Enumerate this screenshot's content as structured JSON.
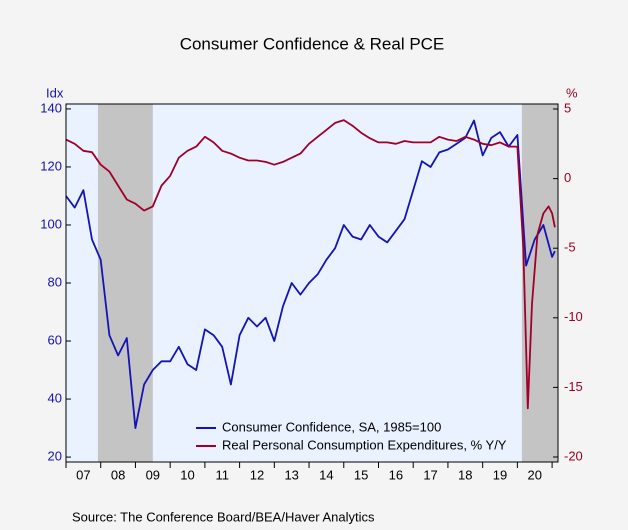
{
  "chart_data": {
    "type": "line",
    "title": "Consumer Confidence & Real PCE",
    "y_axis_label": "Idx",
    "y2_axis_label": "%",
    "source": "Source: The Conference Board/BEA/Haver Analytics",
    "xlim": [
      2007,
      2021.17
    ],
    "xticks": [
      2007,
      2008,
      2009,
      2010,
      2011,
      2012,
      2013,
      2014,
      2015,
      2016,
      2017,
      2018,
      2019,
      2020,
      2021
    ],
    "x_labels": [
      {
        "value": 2007.5,
        "label": "07"
      },
      {
        "value": 2008.5,
        "label": "08"
      },
      {
        "value": 2009.5,
        "label": "09"
      },
      {
        "value": 2010.5,
        "label": "10"
      },
      {
        "value": 2011.5,
        "label": "11"
      },
      {
        "value": 2012.5,
        "label": "12"
      },
      {
        "value": 2013.5,
        "label": "13"
      },
      {
        "value": 2014.5,
        "label": "14"
      },
      {
        "value": 2015.5,
        "label": "15"
      },
      {
        "value": 2016.5,
        "label": "16"
      },
      {
        "value": 2017.5,
        "label": "17"
      },
      {
        "value": 2018.5,
        "label": "18"
      },
      {
        "value": 2019.5,
        "label": "19"
      },
      {
        "value": 2020.5,
        "label": "20"
      }
    ],
    "ylim": [
      18.3,
      141.7
    ],
    "yticks": [
      20,
      40,
      60,
      80,
      100,
      120,
      140
    ],
    "y2lim": [
      -20.36,
      5.36
    ],
    "y2ticks": [
      -20,
      -15,
      -10,
      -5,
      0,
      5
    ],
    "shaded_periods": [
      [
        2007.92,
        2009.5
      ],
      [
        2020.13,
        2021.17
      ]
    ],
    "shade_color": "#c4c4c4",
    "background": "#eaf2ff",
    "series": [
      {
        "name": "Consumer Confidence, SA, 1985=100",
        "color": "#1414b4",
        "axis": "y",
        "x": [
          2007.0,
          2007.25,
          2007.5,
          2007.75,
          2008.0,
          2008.25,
          2008.5,
          2008.75,
          2009.0,
          2009.25,
          2009.5,
          2009.75,
          2010.0,
          2010.25,
          2010.5,
          2010.75,
          2011.0,
          2011.25,
          2011.5,
          2011.75,
          2012.0,
          2012.25,
          2012.5,
          2012.75,
          2013.0,
          2013.25,
          2013.5,
          2013.75,
          2014.0,
          2014.25,
          2014.5,
          2014.75,
          2015.0,
          2015.25,
          2015.5,
          2015.75,
          2016.0,
          2016.25,
          2016.5,
          2016.75,
          2017.0,
          2017.25,
          2017.5,
          2017.75,
          2018.0,
          2018.25,
          2018.5,
          2018.75,
          2019.0,
          2019.25,
          2019.5,
          2019.75,
          2020.0,
          2020.25,
          2020.5,
          2020.75,
          2021.0,
          2021.08
        ],
        "values": [
          110,
          106,
          112,
          95,
          88,
          62,
          55,
          61,
          30,
          45,
          50,
          53,
          53,
          58,
          52,
          50,
          64,
          62,
          58,
          45,
          62,
          68,
          65,
          68,
          60,
          72,
          80,
          76,
          80,
          83,
          88,
          92,
          100,
          96,
          95,
          100,
          96,
          94,
          98,
          102,
          112,
          122,
          120,
          125,
          126,
          128,
          130,
          136,
          124,
          130,
          132,
          127,
          131,
          86,
          95,
          100,
          89,
          91
        ]
      },
      {
        "name": "Real Personal Consumption Expenditures, % Y/Y",
        "color": "#a00028",
        "axis": "y2",
        "x": [
          2007.0,
          2007.25,
          2007.5,
          2007.75,
          2008.0,
          2008.25,
          2008.5,
          2008.75,
          2009.0,
          2009.25,
          2009.5,
          2009.75,
          2010.0,
          2010.25,
          2010.5,
          2010.75,
          2011.0,
          2011.25,
          2011.5,
          2011.75,
          2012.0,
          2012.25,
          2012.5,
          2012.75,
          2013.0,
          2013.25,
          2013.5,
          2013.75,
          2014.0,
          2014.25,
          2014.5,
          2014.75,
          2015.0,
          2015.25,
          2015.5,
          2015.75,
          2016.0,
          2016.25,
          2016.5,
          2016.75,
          2017.0,
          2017.25,
          2017.5,
          2017.75,
          2018.0,
          2018.25,
          2018.5,
          2018.75,
          2019.0,
          2019.25,
          2019.5,
          2019.75,
          2020.0,
          2020.17,
          2020.3,
          2020.42,
          2020.58,
          2020.75,
          2020.9,
          2021.0,
          2021.08
        ],
        "values": [
          2.8,
          2.5,
          2.0,
          1.9,
          1.0,
          0.5,
          -0.5,
          -1.5,
          -1.8,
          -2.3,
          -2.0,
          -0.5,
          0.2,
          1.5,
          2.0,
          2.3,
          3.0,
          2.6,
          2.0,
          1.8,
          1.5,
          1.3,
          1.3,
          1.2,
          1.0,
          1.2,
          1.5,
          1.8,
          2.5,
          3.0,
          3.5,
          4.0,
          4.2,
          3.8,
          3.3,
          2.9,
          2.6,
          2.6,
          2.5,
          2.7,
          2.6,
          2.6,
          2.6,
          3.0,
          2.8,
          2.7,
          3.0,
          2.8,
          2.5,
          2.4,
          2.6,
          2.3,
          2.3,
          -5.0,
          -16.5,
          -9.0,
          -4.0,
          -2.5,
          -2.0,
          -2.5,
          -3.5
        ]
      }
    ]
  }
}
